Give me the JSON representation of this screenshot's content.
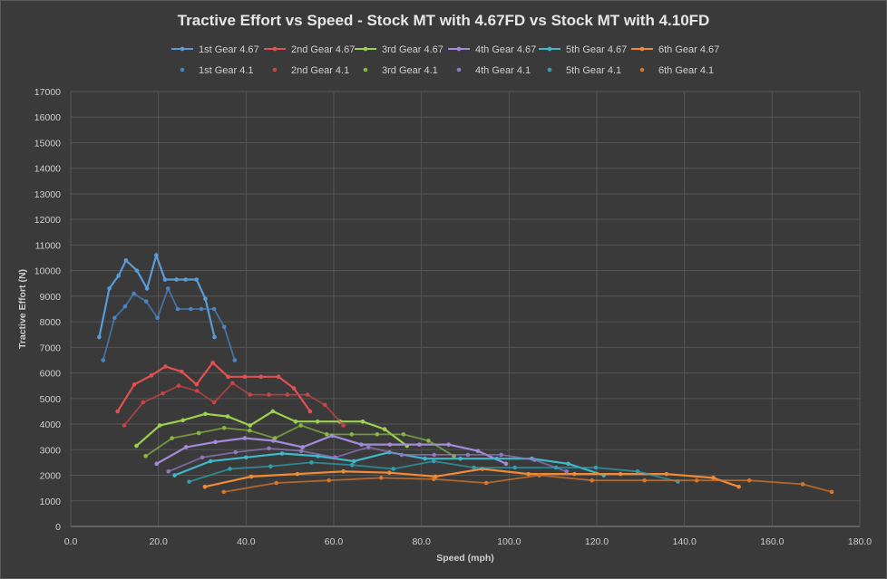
{
  "chart_data": {
    "type": "line",
    "title": "Tractive Effort vs Speed - Stock MT with 4.67FD vs Stock MT with 4.10FD",
    "xlabel": "Speed (mph)",
    "ylabel": "Tractive Effort (N)",
    "xlim": [
      0,
      180
    ],
    "ylim": [
      0,
      17000
    ],
    "xticks": [
      "0.0",
      "20.0",
      "40.0",
      "60.0",
      "80.0",
      "100.0",
      "120.0",
      "140.0",
      "160.0",
      "180.0"
    ],
    "yticks": [
      "0",
      "1000",
      "2000",
      "3000",
      "4000",
      "5000",
      "6000",
      "7000",
      "8000",
      "9000",
      "10000",
      "11000",
      "12000",
      "13000",
      "14000",
      "15000",
      "16000",
      "17000"
    ],
    "grid": true,
    "legend_position": "top",
    "series": [
      {
        "name": "1st Gear 4.67",
        "color": "#5b9bd5",
        "style": "line",
        "x": [
          6.5,
          8.8,
          10.9,
          12.6,
          15.1,
          17.4,
          19.5,
          21.5,
          24.1,
          26.2,
          28.7,
          30.7,
          32.8
        ],
        "y": [
          7400,
          9300,
          9800,
          10400,
          10000,
          9300,
          10600,
          9650,
          9650,
          9650,
          9650,
          8900,
          7400
        ]
      },
      {
        "name": "2nd Gear 4.67",
        "color": "#e05252",
        "style": "line",
        "x": [
          10.7,
          14.5,
          18.4,
          21.6,
          25.3,
          28.7,
          32.4,
          35.9,
          39.7,
          43.4,
          47.4,
          50.9,
          54.6
        ],
        "y": [
          4500,
          5550,
          5900,
          6250,
          6050,
          5550,
          6400,
          5850,
          5850,
          5850,
          5850,
          5400,
          4500
        ]
      },
      {
        "name": "3rd Gear 4.67",
        "color": "#9bd14e",
        "style": "line",
        "x": [
          15.0,
          20.3,
          25.6,
          30.7,
          35.8,
          40.9,
          46.1,
          51.3,
          56.3,
          61.4,
          66.6,
          71.6,
          76.7
        ],
        "y": [
          3150,
          3950,
          4150,
          4400,
          4300,
          3950,
          4500,
          4100,
          4100,
          4100,
          4100,
          3800,
          3150
        ]
      },
      {
        "name": "4th Gear 4.67",
        "color": "#a48ad9",
        "style": "line",
        "x": [
          19.6,
          26.3,
          33.0,
          39.7,
          46.2,
          52.9,
          59.6,
          66.3,
          72.8,
          79.5,
          86.2,
          92.9,
          99.3
        ],
        "y": [
          2450,
          3100,
          3300,
          3450,
          3350,
          3100,
          3550,
          3200,
          3200,
          3200,
          3200,
          2950,
          2450
        ]
      },
      {
        "name": "5th Gear 4.67",
        "color": "#3fb8c9",
        "style": "line",
        "x": [
          23.7,
          31.9,
          40.0,
          48.2,
          56.4,
          64.6,
          72.7,
          80.8,
          88.9,
          97.2,
          105.2,
          113.5,
          121.6
        ],
        "y": [
          2000,
          2550,
          2700,
          2850,
          2750,
          2550,
          2900,
          2650,
          2650,
          2650,
          2650,
          2450,
          2000
        ]
      },
      {
        "name": "6th Gear 4.67",
        "color": "#f08a35",
        "style": "line",
        "x": [
          30.6,
          41.2,
          51.7,
          62.2,
          72.7,
          83.2,
          93.9,
          104.4,
          114.9,
          125.4,
          135.9,
          146.6,
          152.4
        ],
        "y": [
          1550,
          1950,
          2050,
          2150,
          2100,
          1950,
          2250,
          2050,
          2050,
          2050,
          2050,
          1900,
          1550
        ]
      },
      {
        "name": "1st Gear 4.1",
        "color": "#4a84c2",
        "style": "line",
        "x": [
          7.4,
          10.0,
          12.4,
          14.4,
          17.2,
          19.8,
          22.2,
          24.4,
          27.4,
          29.8,
          32.7,
          35.0,
          37.4
        ],
        "y": [
          6500,
          8150,
          8600,
          9100,
          8800,
          8150,
          9300,
          8500,
          8500,
          8500,
          8500,
          7800,
          6500
        ]
      },
      {
        "name": "2nd Gear 4.1",
        "color": "#c94444",
        "style": "line",
        "x": [
          12.2,
          16.5,
          21.0,
          24.6,
          28.8,
          32.7,
          36.9,
          40.9,
          45.2,
          49.4,
          54.0,
          58.0,
          62.2
        ],
        "y": [
          3950,
          4850,
          5200,
          5500,
          5300,
          4850,
          5600,
          5150,
          5150,
          5150,
          5150,
          4750,
          3950
        ]
      },
      {
        "name": "3rd Gear 4.1",
        "color": "#86b83f",
        "style": "line",
        "x": [
          17.1,
          23.1,
          29.2,
          35.0,
          40.8,
          46.6,
          52.5,
          58.4,
          64.1,
          69.9,
          75.9,
          81.6,
          87.4
        ],
        "y": [
          2750,
          3450,
          3650,
          3850,
          3750,
          3450,
          3950,
          3600,
          3600,
          3600,
          3600,
          3350,
          2750
        ]
      },
      {
        "name": "4th Gear 4.1",
        "color": "#8f77c2",
        "style": "line",
        "x": [
          22.3,
          30.0,
          37.6,
          45.2,
          52.6,
          60.3,
          67.9,
          75.5,
          82.9,
          90.6,
          98.2,
          105.8,
          113.1
        ],
        "y": [
          2150,
          2700,
          2900,
          3050,
          2950,
          2700,
          3100,
          2800,
          2800,
          2800,
          2800,
          2600,
          2150
        ]
      },
      {
        "name": "5th Gear 4.1",
        "color": "#2fa0b0",
        "style": "line",
        "x": [
          27.0,
          36.3,
          45.6,
          54.9,
          64.2,
          73.6,
          82.8,
          92.0,
          101.3,
          110.7,
          119.8,
          129.3,
          138.5
        ],
        "y": [
          1750,
          2250,
          2350,
          2500,
          2400,
          2250,
          2550,
          2300,
          2300,
          2300,
          2300,
          2150,
          1750
        ]
      },
      {
        "name": "6th Gear 4.1",
        "color": "#d9762a",
        "style": "line",
        "x": [
          34.9,
          46.9,
          58.9,
          70.8,
          82.8,
          94.8,
          106.9,
          118.9,
          130.9,
          142.8,
          154.8,
          167.0,
          173.6
        ],
        "y": [
          1350,
          1700,
          1800,
          1900,
          1850,
          1700,
          2000,
          1800,
          1800,
          1800,
          1800,
          1650,
          1350
        ]
      }
    ]
  }
}
